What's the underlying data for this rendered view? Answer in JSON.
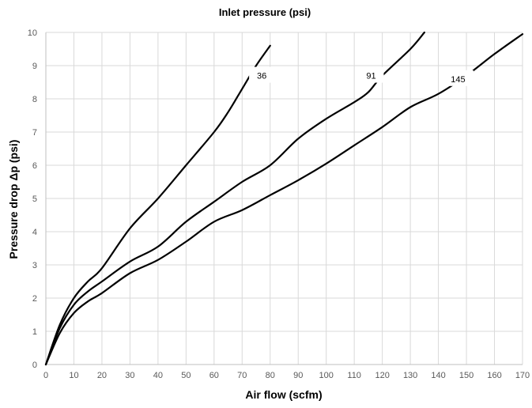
{
  "chart_data": {
    "type": "line",
    "title": "Inlet pressure (psi)",
    "xlabel": "Air flow (scfm)",
    "ylabel": "Pressure drop Δp (psi)",
    "xlim": [
      0,
      170
    ],
    "ylim": [
      0,
      10
    ],
    "x_ticks": [
      0,
      10,
      20,
      30,
      40,
      50,
      60,
      70,
      80,
      90,
      100,
      110,
      120,
      130,
      140,
      150,
      160,
      170
    ],
    "y_ticks": [
      0,
      1,
      2,
      3,
      4,
      5,
      6,
      7,
      8,
      9,
      10
    ],
    "grid": true,
    "series": [
      {
        "name": "36",
        "x": [
          0,
          5,
          10,
          15,
          20,
          30,
          40,
          50,
          60,
          65,
          70,
          75,
          80
        ],
        "y": [
          0,
          1.2,
          2.0,
          2.5,
          2.9,
          4.1,
          5.0,
          6.0,
          7.0,
          7.6,
          8.3,
          9.0,
          9.6
        ]
      },
      {
        "name": "91",
        "x": [
          0,
          5,
          10,
          15,
          20,
          30,
          40,
          50,
          60,
          70,
          80,
          90,
          100,
          110,
          115,
          120,
          130,
          135
        ],
        "y": [
          0,
          1.1,
          1.8,
          2.2,
          2.5,
          3.1,
          3.55,
          4.3,
          4.9,
          5.5,
          6.0,
          6.8,
          7.4,
          7.9,
          8.2,
          8.7,
          9.5,
          10.0
        ]
      },
      {
        "name": "145",
        "x": [
          0,
          5,
          10,
          15,
          20,
          30,
          40,
          50,
          60,
          70,
          80,
          90,
          100,
          110,
          120,
          130,
          140,
          150,
          160,
          170
        ],
        "y": [
          0,
          0.95,
          1.55,
          1.9,
          2.15,
          2.75,
          3.15,
          3.7,
          4.3,
          4.65,
          5.1,
          5.55,
          6.05,
          6.6,
          7.15,
          7.75,
          8.15,
          8.7,
          9.35,
          9.95
        ]
      }
    ],
    "series_labels": [
      {
        "text": "36",
        "x": 77,
        "y": 8.7
      },
      {
        "text": "91",
        "x": 116,
        "y": 8.7
      },
      {
        "text": "145",
        "x": 147,
        "y": 8.6
      }
    ]
  }
}
